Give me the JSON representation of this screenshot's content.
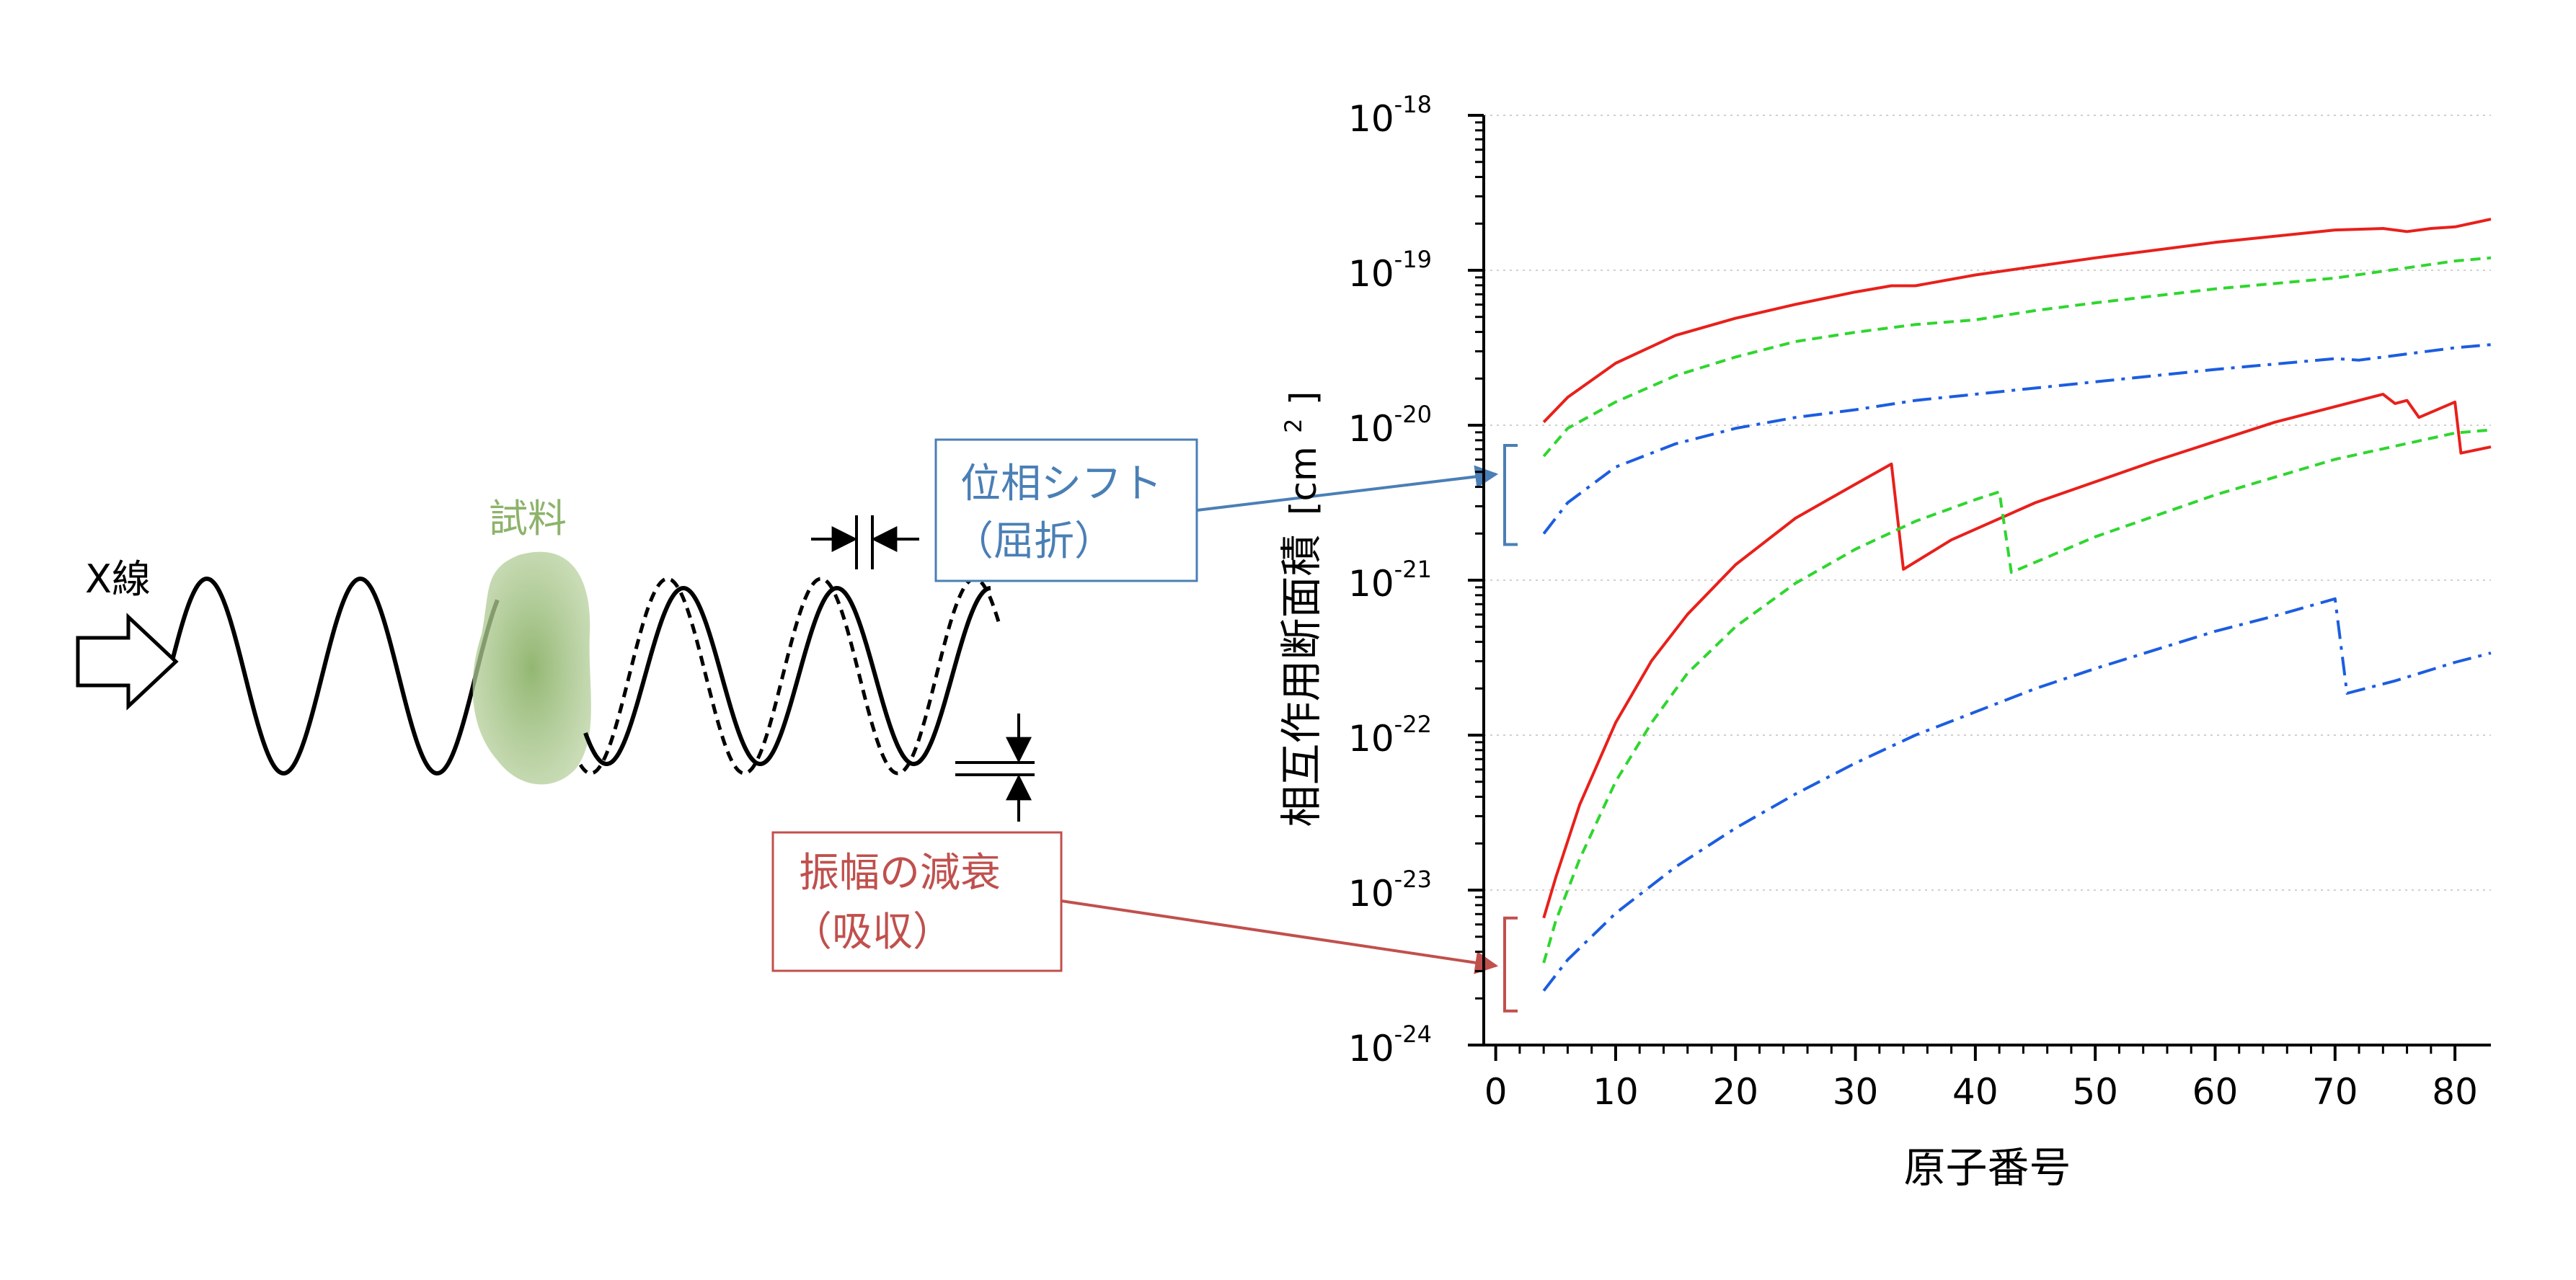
{
  "diagram": {
    "xray_label": "X線",
    "sample_label": "試料",
    "phase_box": {
      "line1": "位相シフト",
      "line2": "（屈折）"
    },
    "amp_box": {
      "line1": "振幅の減衰",
      "line2": "（吸収）"
    },
    "colors": {
      "sample": "#8db36b",
      "phase": "#4a7fb5",
      "amp": "#c0504d",
      "wave": "#000000"
    }
  },
  "chart_data": {
    "type": "line",
    "xlabel": "原子番号",
    "ylabel": "相互作用断面積",
    "ylabel_unit": "[cm",
    "ylabel_unit_sup": "2",
    "ylabel_unit_end": "]",
    "y_scale": "log",
    "xlim": [
      -1,
      83
    ],
    "ylim": [
      1e-24,
      1e-18
    ],
    "x_ticks": [
      0,
      10,
      20,
      30,
      40,
      50,
      60,
      70,
      80
    ],
    "y_ticks": [
      {
        "base": "10",
        "exp": "-18",
        "value": -18
      },
      {
        "base": "10",
        "exp": "-19",
        "value": -19
      },
      {
        "base": "10",
        "exp": "-20",
        "value": -20
      },
      {
        "base": "10",
        "exp": "-21",
        "value": -21
      },
      {
        "base": "10",
        "exp": "-22",
        "value": -22
      },
      {
        "base": "10",
        "exp": "-23",
        "value": -23
      },
      {
        "base": "10",
        "exp": "-24",
        "value": -24
      }
    ],
    "grid": "horizontal-dotted",
    "series": [
      {
        "group": "phase",
        "style": "solid",
        "color": "#e8201b",
        "x": [
          4,
          6,
          10,
          15,
          20,
          25,
          30,
          33,
          35,
          40,
          50,
          60,
          70,
          74,
          76,
          78,
          80,
          83
        ],
        "log10_y": [
          -19.98,
          -19.82,
          -19.6,
          -19.42,
          -19.31,
          -19.22,
          -19.14,
          -19.1,
          -19.1,
          -19.03,
          -18.92,
          -18.82,
          -18.74,
          -18.73,
          -18.75,
          -18.73,
          -18.72,
          -18.67
        ]
      },
      {
        "group": "phase",
        "style": "dashed",
        "color": "#2fd62f",
        "x": [
          4,
          6,
          10,
          15,
          20,
          25,
          30,
          35,
          40,
          45,
          50,
          60,
          70,
          80,
          83
        ],
        "log10_y": [
          -20.2,
          -20.02,
          -19.85,
          -19.68,
          -19.56,
          -19.46,
          -19.4,
          -19.35,
          -19.32,
          -19.26,
          -19.21,
          -19.12,
          -19.05,
          -18.94,
          -18.92
        ]
      },
      {
        "group": "phase",
        "style": "dashdot",
        "color": "#1c5de0",
        "x": [
          4,
          6,
          10,
          15,
          20,
          25,
          30,
          35,
          40,
          50,
          60,
          70,
          72,
          80,
          83
        ],
        "log10_y": [
          -20.7,
          -20.5,
          -20.27,
          -20.12,
          -20.02,
          -19.95,
          -19.9,
          -19.84,
          -19.8,
          -19.72,
          -19.64,
          -19.57,
          -19.58,
          -19.5,
          -19.48
        ]
      },
      {
        "group": "absorption",
        "style": "solid",
        "color": "#e8201b",
        "x": [
          4,
          5,
          7,
          10,
          13,
          16,
          20,
          25,
          30,
          33,
          34,
          38,
          45,
          55,
          65,
          74,
          75,
          76,
          77,
          80,
          80.5,
          83
        ],
        "log10_y": [
          -23.18,
          -22.92,
          -22.45,
          -21.92,
          -21.52,
          -21.22,
          -20.9,
          -20.6,
          -20.38,
          -20.25,
          -20.93,
          -20.74,
          -20.5,
          -20.23,
          -19.98,
          -19.8,
          -19.86,
          -19.84,
          -19.95,
          -19.85,
          -20.18,
          -20.14
        ]
      },
      {
        "group": "absorption",
        "style": "dashed",
        "color": "#2fd62f",
        "x": [
          4,
          5,
          7,
          10,
          13,
          16,
          20,
          25,
          30,
          35,
          40,
          42,
          43,
          50,
          60,
          70,
          80,
          83
        ],
        "log10_y": [
          -23.47,
          -23.2,
          -22.8,
          -22.3,
          -21.92,
          -21.6,
          -21.3,
          -21.02,
          -20.8,
          -20.62,
          -20.48,
          -20.43,
          -20.95,
          -20.72,
          -20.45,
          -20.22,
          -20.05,
          -20.03
        ]
      },
      {
        "group": "absorption",
        "style": "dashdot",
        "color": "#1c5de0",
        "x": [
          4,
          6,
          10,
          15,
          20,
          25,
          30,
          35,
          40,
          45,
          50,
          55,
          60,
          65,
          70,
          71,
          75,
          80,
          83
        ],
        "log10_y": [
          -23.65,
          -23.45,
          -23.15,
          -22.85,
          -22.6,
          -22.38,
          -22.18,
          -22.0,
          -21.85,
          -21.7,
          -21.57,
          -21.45,
          -21.33,
          -21.23,
          -21.12,
          -21.73,
          -21.65,
          -21.53,
          -21.47
        ]
      }
    ]
  }
}
